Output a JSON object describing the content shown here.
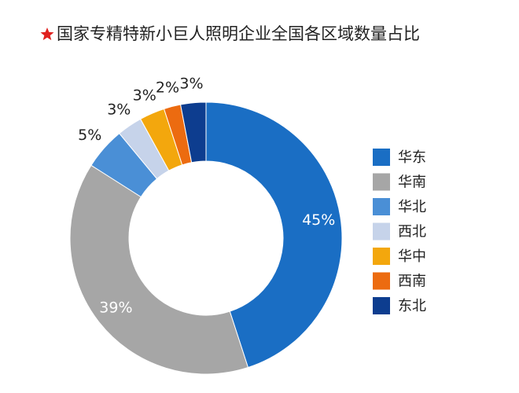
{
  "chart_data": {
    "type": "pie",
    "title": "国家专精特新小巨人照明企业全国各区域数量占比",
    "categories": [
      "华东",
      "华南",
      "华北",
      "西北",
      "华中",
      "西南",
      "东北"
    ],
    "values": [
      45,
      39,
      5,
      3,
      3,
      2,
      3
    ],
    "value_labels": [
      "45%",
      "39%",
      "5%",
      "3%",
      "3%",
      "2%",
      "3%"
    ],
    "colors": [
      "#1a6ec4",
      "#a6a6a6",
      "#4a8fd6",
      "#c6d3ea",
      "#f3a70d",
      "#ec6b10",
      "#0d3d8f"
    ],
    "donut": true,
    "legend": "right"
  }
}
